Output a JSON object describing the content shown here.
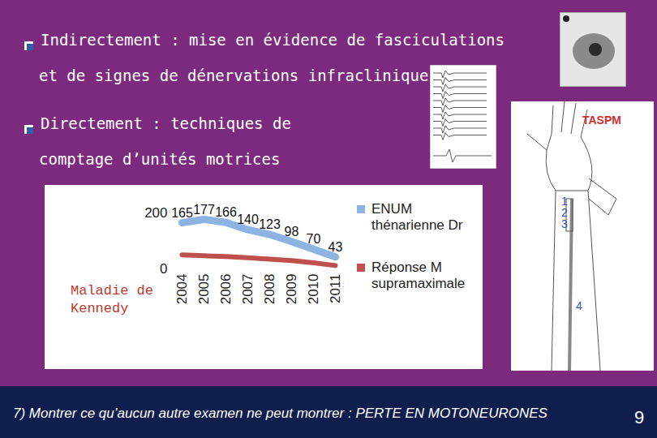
{
  "slide": {
    "bullets": [
      {
        "lines": [
          "Indirectement : mise en évidence de fasciculations",
          "et de signes de dénervations infracliniques"
        ]
      },
      {
        "lines": [
          "Directement : techniques de",
          "comptage d’unités motrices"
        ]
      }
    ],
    "figure_labels": {
      "arm": "TASPM",
      "sites": [
        "1",
        "2",
        "3",
        "4"
      ]
    },
    "footer": "7) Montrer ce qu’aucun autre examen ne peut montrer : PERTE EN MOTONEURONES",
    "page_number": "9"
  },
  "chart_data": {
    "type": "line",
    "annotation": "Maladie de Kennedy",
    "categories": [
      "2004",
      "2005",
      "2006",
      "2007",
      "2008",
      "2009",
      "2010",
      "2011"
    ],
    "series": [
      {
        "name": "ENUM thénarienne Dr",
        "color": "#8db3e2",
        "values": [
          165,
          177,
          166,
          140,
          123,
          98,
          70,
          43
        ],
        "data_labels": true
      },
      {
        "name": "Réponse M supramaximale",
        "color": "#c0504d",
        "values": [
          50,
          47,
          44,
          40,
          35,
          30,
          22,
          12
        ]
      }
    ],
    "ylim": [
      0,
      200
    ],
    "yticks": [
      0,
      200
    ],
    "grid": false,
    "legend": "right"
  }
}
